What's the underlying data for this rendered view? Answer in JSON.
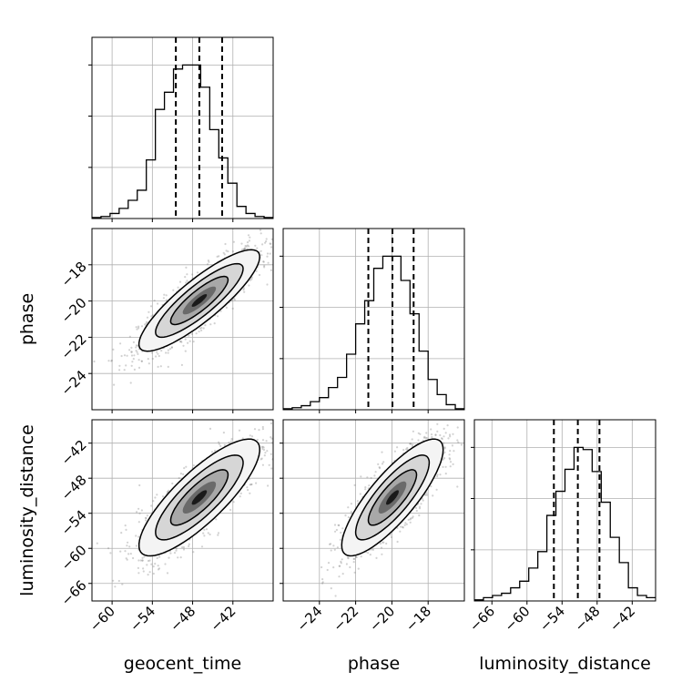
{
  "chart_data": {
    "type": "corner",
    "parameters": [
      "geocent_time",
      "phase",
      "luminosity_distance"
    ],
    "axis_labels": {
      "x": [
        "geocent_time",
        "phase",
        "luminosity_distance"
      ],
      "y": [
        "",
        "phase",
        "luminosity_distance"
      ]
    },
    "grid": true,
    "colors": {
      "ink": "#000000",
      "grid": "#b0b0b0",
      "density_dark": "#000000",
      "density_light": "#ffffff",
      "scatter": "#7f7f7f"
    },
    "ranges": {
      "geocent_time": [
        -63,
        -36
      ],
      "phase": [
        -26,
        -16
      ],
      "luminosity_distance": [
        -69,
        -38
      ]
    },
    "ticks": {
      "geocent_time": [
        -60,
        -54,
        -48,
        -42
      ],
      "phase": [
        -24,
        -22,
        -20,
        -18
      ],
      "luminosity_distance": [
        -66,
        -60,
        -54,
        -48,
        -42
      ]
    },
    "tick_labels": {
      "geocent_time": [
        "−60",
        "−54",
        "−48",
        "−42"
      ],
      "phase": [
        "−24",
        "−22",
        "−20",
        "−18"
      ],
      "luminosity_distance": [
        "−66",
        "−60",
        "−54",
        "−48",
        "−42"
      ]
    },
    "marginals": [
      {
        "parameter": "geocent_time",
        "bin_edges": [
          -63,
          -61.65,
          -60.3,
          -58.95,
          -57.6,
          -56.25,
          -54.9,
          -53.55,
          -52.2,
          -50.85,
          -49.5,
          -48.15,
          -46.8,
          -45.45,
          -44.1,
          -42.75,
          -41.4,
          -40.05,
          -38.7,
          -37.35,
          -36
        ],
        "counts": [
          1,
          2,
          5,
          10,
          18,
          28,
          58,
          108,
          125,
          148,
          152,
          152,
          130,
          88,
          60,
          35,
          12,
          5,
          2,
          1
        ],
        "quantiles": [
          -50.5,
          -47.0,
          -43.6
        ]
      },
      {
        "parameter": "phase",
        "bin_edges": [
          -26,
          -25.5,
          -25,
          -24.5,
          -24,
          -23.5,
          -23,
          -22.5,
          -22,
          -21.5,
          -21,
          -20.5,
          -20,
          -19.5,
          -19,
          -18.5,
          -18,
          -17.5,
          -17,
          -16.5,
          -16
        ],
        "counts": [
          1,
          2,
          4,
          8,
          12,
          22,
          32,
          55,
          85,
          108,
          140,
          152,
          152,
          128,
          95,
          58,
          30,
          15,
          5,
          1
        ],
        "quantiles": [
          -21.3,
          -19.97,
          -18.8
        ]
      },
      {
        "parameter": "luminosity_distance",
        "bin_edges": [
          -69,
          -67.45,
          -65.9,
          -64.35,
          -62.8,
          -61.25,
          -59.7,
          -58.15,
          -56.6,
          -55.05,
          -53.5,
          -51.95,
          -50.4,
          -48.85,
          -47.3,
          -45.75,
          -44.2,
          -42.65,
          -41.1,
          -39.55,
          -38
        ],
        "counts": [
          1,
          3,
          5,
          7,
          12,
          18,
          30,
          45,
          78,
          100,
          120,
          140,
          138,
          118,
          90,
          58,
          35,
          12,
          5,
          3
        ],
        "quantiles": [
          -55.4,
          -51.3,
          -47.6
        ]
      }
    ],
    "joint": [
      {
        "x": "geocent_time",
        "y": "phase",
        "mean": [
          -47.0,
          -19.97
        ],
        "std": [
          4.5,
          1.4
        ],
        "corr": 0.86
      },
      {
        "x": "geocent_time",
        "y": "luminosity_distance",
        "mean": [
          -47.0,
          -51.3
        ],
        "std": [
          4.5,
          5.0
        ],
        "corr": 0.82
      },
      {
        "x": "phase",
        "y": "luminosity_distance",
        "mean": [
          -19.97,
          -51.3
        ],
        "std": [
          1.4,
          5.0
        ],
        "corr": 0.82
      }
    ]
  }
}
